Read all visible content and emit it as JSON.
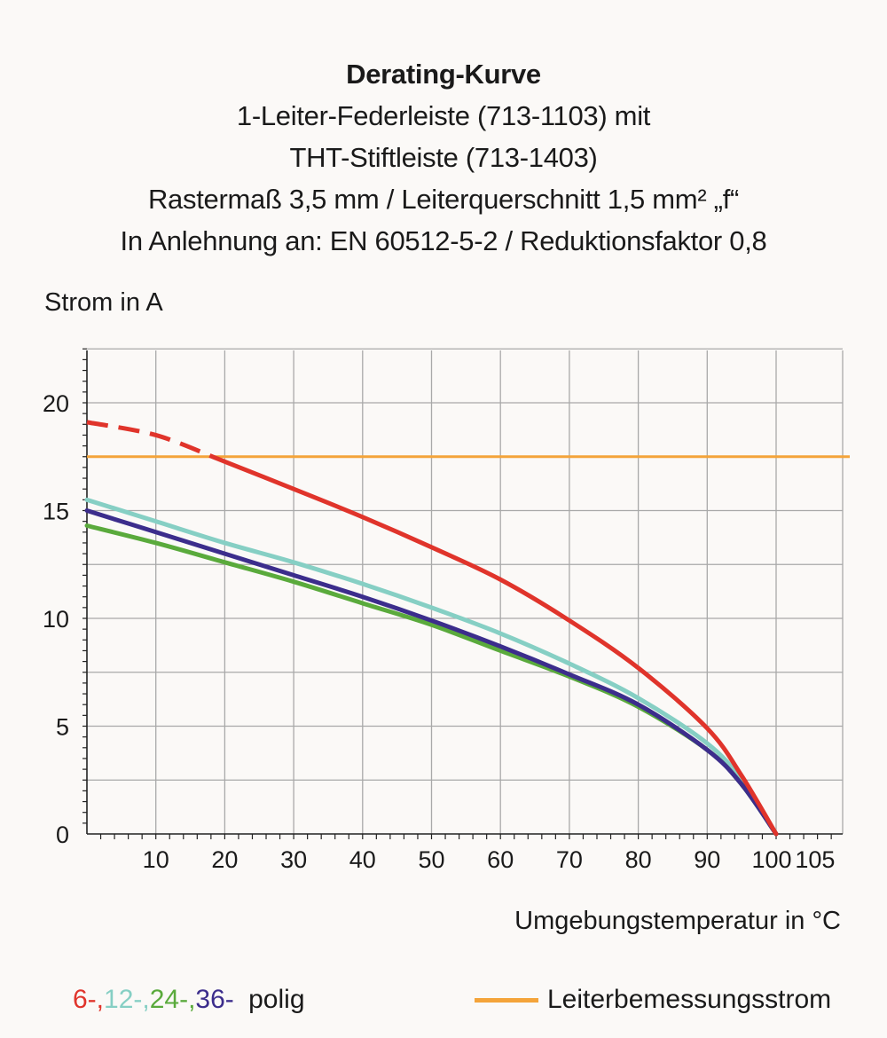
{
  "chart_data": {
    "type": "line",
    "title": "Derating-Kurve",
    "subtitle_lines": [
      "1-Leiter-Federleiste (713-1103) mit",
      "THT-Stiftleiste (713-1403)",
      "Rastermaß 3,5 mm / Leiterquerschnitt 1,5 mm² „f“",
      "In Anlehnung an: EN 60512-5-2 / Reduktionsfaktor 0,8"
    ],
    "ylabel": "Strom in A",
    "xlabel": "Umgebungstemperatur in °C",
    "xlim": [
      0,
      108
    ],
    "ylim": [
      0,
      22.5
    ],
    "x_ticks": [
      10,
      20,
      30,
      40,
      50,
      60,
      70,
      80,
      90,
      100,
      105
    ],
    "y_ticks": [
      0,
      5,
      10,
      15,
      20
    ],
    "grid": true,
    "series": [
      {
        "name": "6-",
        "color": "#e0342b",
        "x": [
          0,
          10,
          19,
          30,
          40,
          50,
          60,
          70,
          80,
          90,
          95,
          100
        ],
        "y": [
          19.1,
          18.5,
          17.4,
          16.0,
          14.7,
          13.3,
          11.8,
          9.9,
          7.7,
          4.9,
          2.7,
          0
        ],
        "dashed_until": 19
      },
      {
        "name": "12-",
        "color": "#86cfc4",
        "x": [
          0,
          10,
          20,
          30,
          40,
          50,
          60,
          70,
          80,
          90,
          95,
          100
        ],
        "y": [
          15.5,
          14.5,
          13.5,
          12.6,
          11.6,
          10.5,
          9.3,
          7.9,
          6.3,
          4.2,
          2.5,
          0
        ]
      },
      {
        "name": "24-",
        "color": "#5aaa3c",
        "x": [
          0,
          10,
          20,
          30,
          40,
          50,
          60,
          70,
          80,
          90,
          95,
          100
        ],
        "y": [
          14.3,
          13.5,
          12.6,
          11.7,
          10.7,
          9.7,
          8.5,
          7.3,
          5.9,
          3.9,
          2.3,
          0
        ]
      },
      {
        "name": "36-",
        "color": "#3c2d8c",
        "x": [
          0,
          10,
          20,
          30,
          40,
          50,
          60,
          70,
          80,
          90,
          95,
          100
        ],
        "y": [
          15.0,
          14.0,
          13.0,
          12.0,
          11.0,
          9.9,
          8.7,
          7.4,
          6.0,
          3.9,
          2.3,
          0
        ]
      }
    ],
    "reference_line": {
      "name": "Leiterbemessungsstrom",
      "y": 17.5,
      "color": "#f4a43a"
    }
  },
  "legend": {
    "items": [
      {
        "text": "6-,",
        "color": "#e0342b"
      },
      {
        "text": "12-,",
        "color": "#86cfc4"
      },
      {
        "text": "24-,",
        "color": "#5aaa3c"
      },
      {
        "text": "36-",
        "color": "#3c2d8c"
      }
    ],
    "suffix": "polig"
  }
}
